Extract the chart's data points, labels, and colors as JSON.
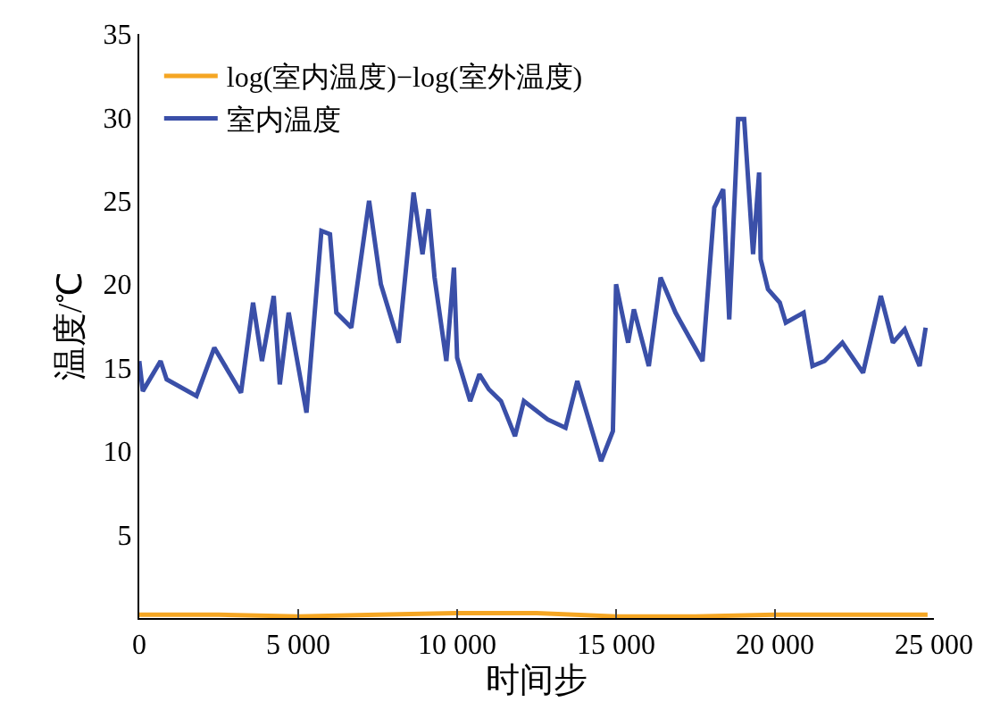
{
  "chart_data": {
    "type": "line",
    "xlabel": "时间步",
    "ylabel": "温度/℃",
    "xlim": [
      0,
      25000
    ],
    "ylim": [
      0,
      35
    ],
    "xticks": [
      0,
      {
        "value": 5000,
        "label": "5 000"
      },
      {
        "value": 10000,
        "label": "10 000"
      },
      {
        "value": 15000,
        "label": "15 000"
      },
      {
        "value": 20000,
        "label": "20 000"
      },
      {
        "value": 25000,
        "label": "25 000"
      }
    ],
    "yticks": [
      5,
      10,
      15,
      20,
      25,
      30,
      35
    ],
    "legend": "top left",
    "marker": "none",
    "line_style": "solid",
    "series": [
      {
        "name": "log(室内温度)−log(室外温度)",
        "color": "#f5a623",
        "x": [
          0,
          2500,
          5000,
          7500,
          10000,
          12500,
          15000,
          17500,
          20000,
          22500,
          24800
        ],
        "values": [
          0.2,
          0.2,
          0.1,
          0.2,
          0.3,
          0.3,
          0.1,
          0.1,
          0.2,
          0.2,
          0.2
        ]
      },
      {
        "name": "室内温度",
        "color": "#3a4fa8",
        "x": [
          0,
          110,
          670,
          860,
          1800,
          2360,
          3200,
          3580,
          3860,
          4230,
          4420,
          4700,
          5260,
          5730,
          6000,
          6200,
          6670,
          7230,
          7600,
          8160,
          8630,
          8910,
          9100,
          9290,
          9660,
          9900,
          10000,
          10410,
          10700,
          11000,
          11380,
          11820,
          12100,
          12850,
          13410,
          13780,
          14530,
          14900,
          15000,
          15380,
          15560,
          16030,
          16400,
          16870,
          17720,
          18090,
          18370,
          18560,
          18840,
          19030,
          19310,
          19500,
          19550,
          19780,
          20150,
          20340,
          20900,
          21180,
          21560,
          22120,
          22770,
          23330,
          23710,
          24080,
          24550,
          24740
        ],
        "values": [
          15.4,
          13.6,
          15.4,
          14.3,
          13.3,
          16.2,
          13.5,
          18.9,
          15.4,
          19.3,
          14,
          18.3,
          12.3,
          23.2,
          23,
          18.3,
          17.4,
          25,
          20,
          16.5,
          25.5,
          21.8,
          24.5,
          20.4,
          15.4,
          21,
          15.6,
          13,
          14.6,
          13.7,
          13,
          10.9,
          13,
          11.9,
          11.4,
          14.2,
          9.4,
          11.2,
          20,
          16.5,
          18.5,
          15.1,
          20.4,
          18.3,
          15.4,
          24.6,
          25.7,
          17.9,
          29.9,
          29.9,
          21.8,
          26.7,
          21.5,
          19.7,
          18.9,
          17.7,
          18.3,
          15.1,
          15.4,
          16.5,
          14.7,
          19.3,
          16.5,
          17.3,
          15.1,
          17.4
        ]
      }
    ]
  }
}
